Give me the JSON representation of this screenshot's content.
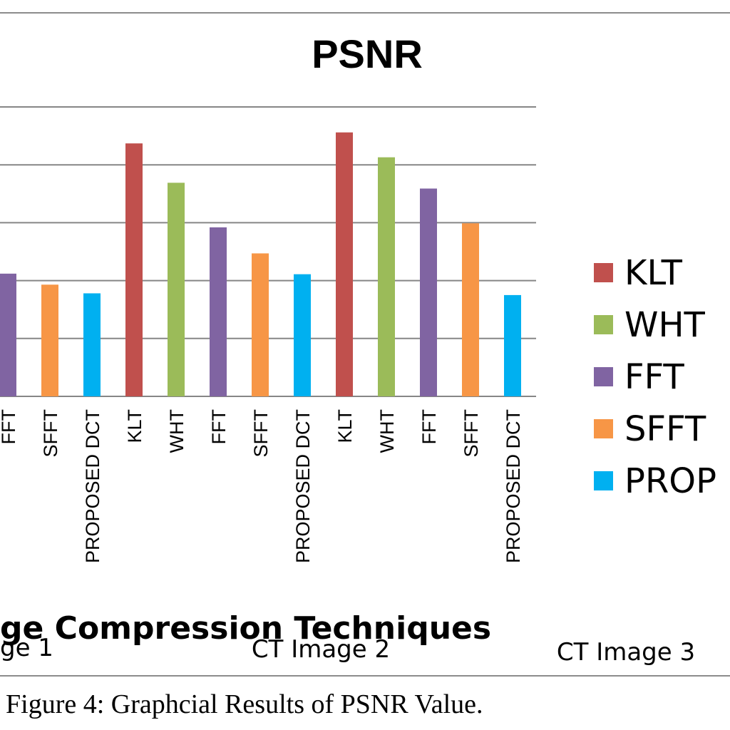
{
  "caption": "Figure 4: Graphcial Results of PSNR Value.",
  "chart_data": {
    "type": "bar",
    "title": "PSNR",
    "xlabel": "ge Compression Techniques",
    "ylabel": "",
    "ylim": [
      0,
      5
    ],
    "grid": true,
    "legend_placement": "right",
    "legend": [
      {
        "label": "KLT",
        "color": "#c0504d"
      },
      {
        "label": "WHT",
        "color": "#9bbb59"
      },
      {
        "label": "FFT",
        "color": "#8064a2"
      },
      {
        "label": "SFFT",
        "color": "#f79646"
      },
      {
        "label": "PROP",
        "color": "#00b0f0"
      }
    ],
    "groups": [
      {
        "label": "ge 1",
        "categories": [
          "FFT",
          "SFFT",
          "PROPOSED DCT"
        ]
      },
      {
        "label": "CT Image 2",
        "categories": [
          "KLT",
          "WHT",
          "FFT",
          "SFFT",
          "PROPOSED DCT"
        ]
      },
      {
        "label": "CT Image 3",
        "categories": [
          "KLT",
          "WHT",
          "FFT",
          "SFFT",
          "PROPOSED DCT"
        ]
      }
    ],
    "categories": [
      "FFT",
      "SFFT",
      "PROPOSED DCT",
      "KLT",
      "WHT",
      "FFT",
      "SFFT",
      "PROPOSED DCT",
      "KLT",
      "WHT",
      "FFT",
      "SFFT",
      "PROPOSED DCT"
    ],
    "values": [
      2.12,
      1.93,
      1.78,
      4.37,
      3.69,
      2.92,
      2.47,
      2.11,
      4.56,
      4.13,
      3.59,
      2.99,
      1.75
    ],
    "bar_colors": [
      "#8064a2",
      "#f79646",
      "#00b0f0",
      "#c0504d",
      "#9bbb59",
      "#8064a2",
      "#f79646",
      "#00b0f0",
      "#c0504d",
      "#9bbb59",
      "#8064a2",
      "#f79646",
      "#00b0f0"
    ]
  }
}
